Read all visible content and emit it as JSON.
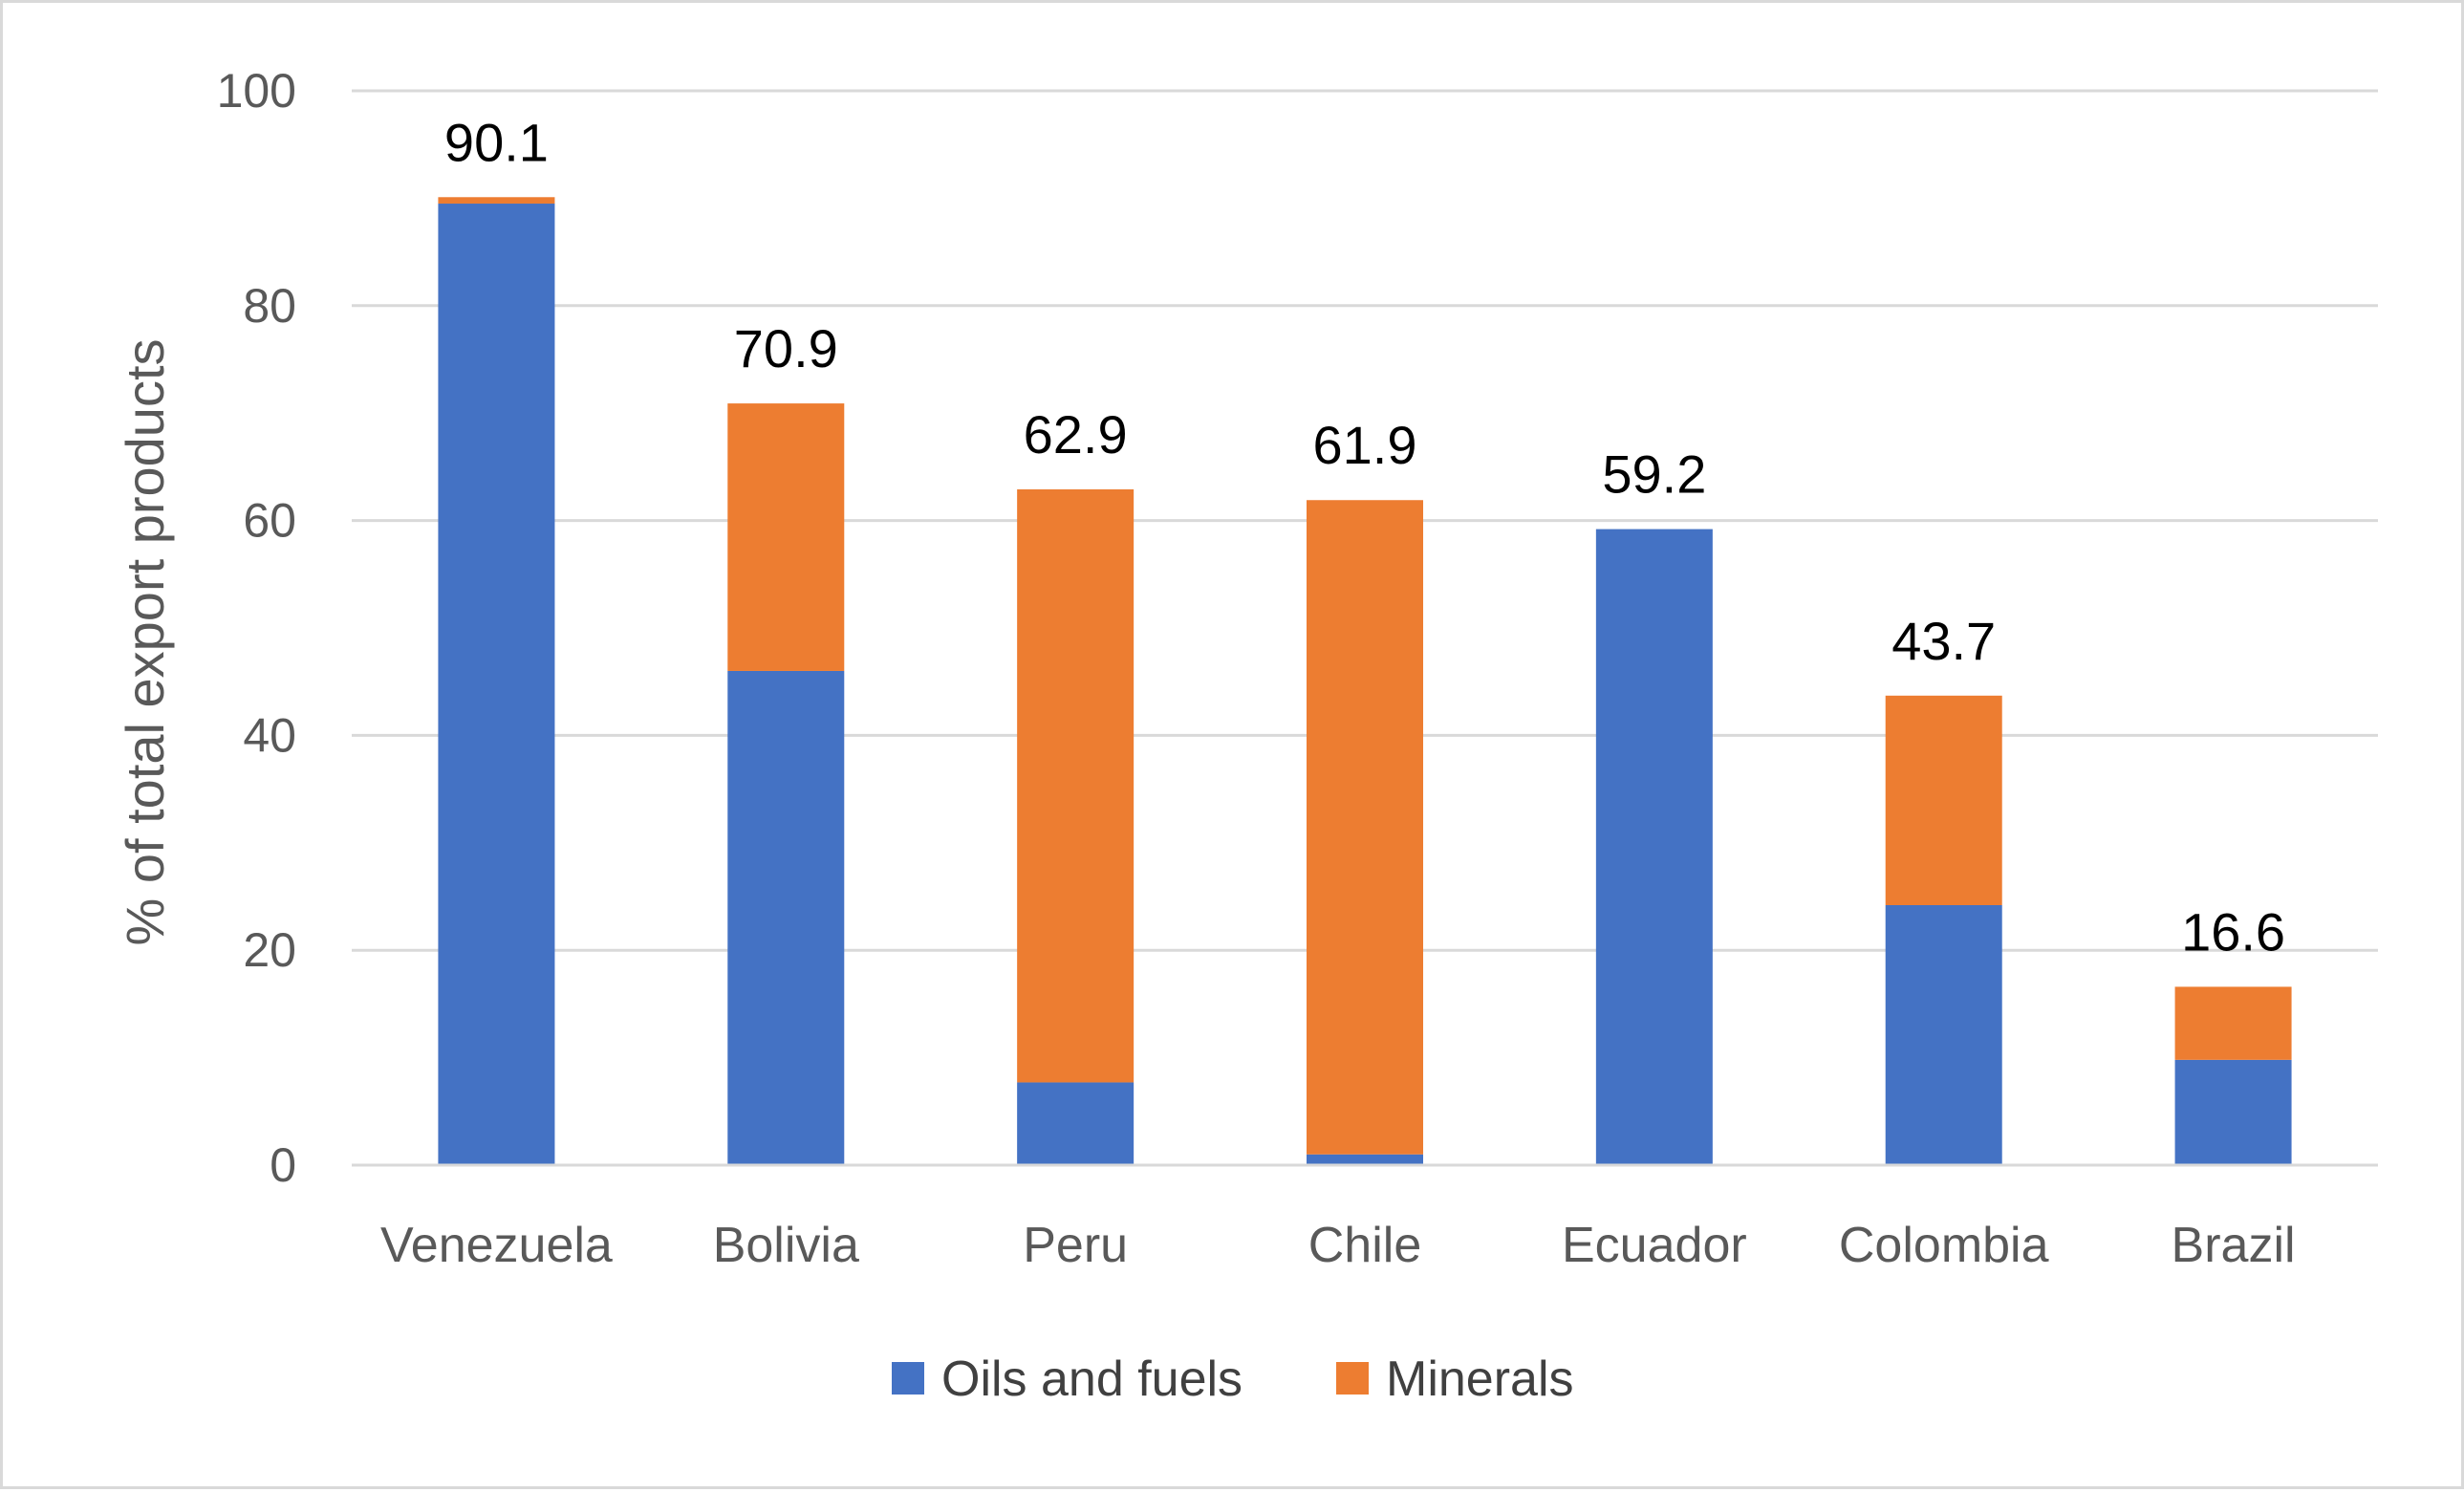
{
  "chart_data": {
    "type": "bar",
    "stacked": true,
    "title": "",
    "xlabel": "",
    "ylabel": "% of total export products",
    "ylim": [
      0,
      100
    ],
    "yticks": [
      0,
      20,
      40,
      60,
      80,
      100
    ],
    "grid": true,
    "legend_position": "bottom",
    "categories": [
      "Venezuela",
      "Bolivia",
      "Peru",
      "Chile",
      "Ecuador",
      "Colombia",
      "Brazil"
    ],
    "series": [
      {
        "name": "Oils and fuels",
        "color": "#4472c4",
        "values": [
          89.5,
          46.0,
          7.7,
          1.0,
          59.2,
          24.2,
          9.8
        ]
      },
      {
        "name": "Minerals",
        "color": "#ed7d31",
        "values": [
          0.6,
          24.9,
          55.2,
          60.9,
          0.0,
          19.5,
          6.8
        ]
      }
    ],
    "totals": [
      "90.1",
      "70.9",
      "62.9",
      "61.9",
      "59.2",
      "43.7",
      "16.6"
    ]
  }
}
